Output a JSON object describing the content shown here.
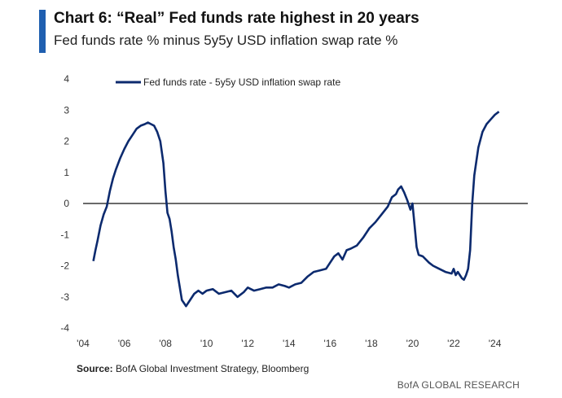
{
  "header": {
    "title": "Chart 6: “Real” Fed funds rate highest in 20 years",
    "subtitle": "Fed funds rate % minus 5y5y USD inflation swap rate %"
  },
  "footer": {
    "source_label": "Source:",
    "source_text": "BofA Global Investment Strategy, Bloomberg",
    "brand": "BofA GLOBAL RESEARCH"
  },
  "colors": {
    "accent": "#1f5fb0",
    "series": "#0c2a6e"
  },
  "chart_data": {
    "type": "line",
    "title": "Chart 6: “Real” Fed funds rate highest in 20 years",
    "subtitle": "Fed funds rate % minus 5y5y USD inflation swap rate %",
    "xlabel": "",
    "ylabel": "",
    "xlim": [
      2004,
      2025.6
    ],
    "ylim": [
      -4,
      4
    ],
    "x_ticks": [
      2004,
      2006,
      2008,
      2010,
      2012,
      2014,
      2016,
      2018,
      2020,
      2022,
      2024
    ],
    "x_tick_labels": [
      "'04",
      "'06",
      "'08",
      "'10",
      "'12",
      "'14",
      "'16",
      "'18",
      "'20",
      "'22",
      "'24"
    ],
    "y_ticks": [
      4,
      3,
      2,
      1,
      0,
      -1,
      -2,
      -3,
      -4
    ],
    "y_tick_labels": [
      "4",
      "3",
      "2",
      "1",
      "0",
      "-1",
      "-2",
      "-3",
      "-4"
    ],
    "reference_line": 0,
    "legend_position": "top-left",
    "series": [
      {
        "name": "Fed funds rate - 5y5y USD inflation swap rate",
        "x": [
          2004.5,
          2004.6,
          2004.7,
          2004.85,
          2005.0,
          2005.15,
          2005.3,
          2005.45,
          2005.6,
          2005.8,
          2006.0,
          2006.2,
          2006.4,
          2006.6,
          2006.8,
          2007.0,
          2007.15,
          2007.3,
          2007.45,
          2007.6,
          2007.75,
          2007.9,
          2008.0,
          2008.1,
          2008.2,
          2008.3,
          2008.4,
          2008.5,
          2008.6,
          2008.7,
          2008.8,
          2008.9,
          2009.0,
          2009.2,
          2009.4,
          2009.6,
          2009.8,
          2010.0,
          2010.3,
          2010.6,
          2010.9,
          2011.2,
          2011.5,
          2011.8,
          2012.0,
          2012.3,
          2012.6,
          2012.9,
          2013.2,
          2013.5,
          2013.8,
          2014.0,
          2014.3,
          2014.6,
          2014.9,
          2015.2,
          2015.5,
          2015.8,
          2016.0,
          2016.2,
          2016.4,
          2016.6,
          2016.8,
          2017.0,
          2017.3,
          2017.6,
          2017.9,
          2018.2,
          2018.5,
          2018.8,
          2019.0,
          2019.2,
          2019.3,
          2019.45,
          2019.6,
          2019.75,
          2019.9,
          2020.0,
          2020.1,
          2020.2,
          2020.3,
          2020.5,
          2020.8,
          2021.0,
          2021.3,
          2021.6,
          2021.9,
          2022.0,
          2022.1,
          2022.2,
          2022.3,
          2022.4,
          2022.5,
          2022.6,
          2022.7,
          2022.8,
          2022.9,
          2023.0,
          2023.2,
          2023.4,
          2023.6,
          2023.8,
          2024.0,
          2024.2
        ],
        "values": [
          -1.85,
          -1.5,
          -1.2,
          -0.7,
          -0.35,
          -0.1,
          0.4,
          0.8,
          1.1,
          1.45,
          1.75,
          2.0,
          2.2,
          2.4,
          2.5,
          2.55,
          2.6,
          2.55,
          2.5,
          2.3,
          2.0,
          1.3,
          0.4,
          -0.3,
          -0.5,
          -0.9,
          -1.4,
          -1.8,
          -2.3,
          -2.7,
          -3.1,
          -3.2,
          -3.3,
          -3.1,
          -2.9,
          -2.8,
          -2.9,
          -2.8,
          -2.75,
          -2.9,
          -2.85,
          -2.8,
          -3.0,
          -2.85,
          -2.7,
          -2.8,
          -2.75,
          -2.7,
          -2.7,
          -2.6,
          -2.65,
          -2.7,
          -2.6,
          -2.55,
          -2.35,
          -2.2,
          -2.15,
          -2.1,
          -1.9,
          -1.7,
          -1.6,
          -1.8,
          -1.5,
          -1.45,
          -1.35,
          -1.1,
          -0.8,
          -0.6,
          -0.35,
          -0.1,
          0.2,
          0.3,
          0.45,
          0.55,
          0.35,
          0.1,
          -0.2,
          0.0,
          -0.7,
          -1.4,
          -1.65,
          -1.7,
          -1.9,
          -2.0,
          -2.1,
          -2.2,
          -2.25,
          -2.1,
          -2.3,
          -2.2,
          -2.3,
          -2.4,
          -2.45,
          -2.3,
          -2.1,
          -1.5,
          0.0,
          0.9,
          1.8,
          2.3,
          2.55,
          2.7,
          2.85,
          2.95
        ]
      }
    ]
  }
}
